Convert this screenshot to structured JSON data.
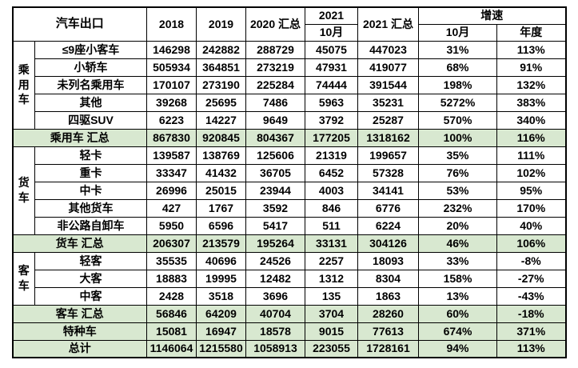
{
  "colors": {
    "summary_row_bg": "#d8e8d0",
    "border": "#000000",
    "text": "#000000",
    "background": "#ffffff"
  },
  "chart_data": {
    "type": "table",
    "title": "汽车出口",
    "header": {
      "title": "汽车出口",
      "y2018": "2018",
      "y2019": "2019",
      "y2020_total": "2020 汇总",
      "y2021": "2021",
      "y2021_month": "10月",
      "y2021_total": "2021 汇总",
      "growth": "增速",
      "growth_month": "10月",
      "growth_year": "年度"
    },
    "columns": [
      "2018",
      "2019",
      "2020 汇总",
      "2021 10月",
      "2021 汇总",
      "增速 10月",
      "增速 年度"
    ],
    "rows": [
      {
        "group": "乘用车",
        "group_rowspan": 5,
        "label": "≤9座小客车",
        "summary": false,
        "values": [
          "146298",
          "242882",
          "288729",
          "45075",
          "447023",
          "31%",
          "113%"
        ]
      },
      {
        "label": "小轿车",
        "summary": false,
        "values": [
          "505934",
          "364851",
          "273219",
          "47931",
          "419077",
          "68%",
          "91%"
        ]
      },
      {
        "label": "未列名乘用车",
        "summary": false,
        "values": [
          "170107",
          "273190",
          "225284",
          "74444",
          "391544",
          "198%",
          "132%"
        ]
      },
      {
        "label": "其他",
        "summary": false,
        "values": [
          "39268",
          "25695",
          "7486",
          "5963",
          "35231",
          "5272%",
          "383%"
        ]
      },
      {
        "label": "四驱SUV",
        "summary": false,
        "values": [
          "6223",
          "14227",
          "9649",
          "3792",
          "25287",
          "570%",
          "340%"
        ]
      },
      {
        "label": "乘用车 汇总",
        "summary": true,
        "values": [
          "867830",
          "920845",
          "804367",
          "177205",
          "1318162",
          "100%",
          "116%"
        ]
      },
      {
        "group": "货车",
        "group_rowspan": 5,
        "label": "轻卡",
        "summary": false,
        "values": [
          "139587",
          "138769",
          "125606",
          "21319",
          "199657",
          "35%",
          "111%"
        ]
      },
      {
        "label": "重卡",
        "summary": false,
        "values": [
          "33347",
          "41432",
          "36705",
          "6452",
          "57328",
          "76%",
          "102%"
        ]
      },
      {
        "label": "中卡",
        "summary": false,
        "values": [
          "26996",
          "25015",
          "23944",
          "4003",
          "34141",
          "53%",
          "95%"
        ]
      },
      {
        "label": "其他货车",
        "summary": false,
        "values": [
          "427",
          "1767",
          "3592",
          "846",
          "6776",
          "232%",
          "170%"
        ]
      },
      {
        "label": "非公路自卸车",
        "summary": false,
        "values": [
          "5950",
          "6596",
          "5417",
          "511",
          "6224",
          "20%",
          "40%"
        ]
      },
      {
        "label": "货车 汇总",
        "summary": true,
        "values": [
          "206307",
          "213579",
          "195264",
          "33131",
          "304126",
          "46%",
          "106%"
        ]
      },
      {
        "group": "客车",
        "group_rowspan": 3,
        "label": "轻客",
        "summary": false,
        "values": [
          "35535",
          "40696",
          "24526",
          "2257",
          "18093",
          "33%",
          "-8%"
        ]
      },
      {
        "label": "大客",
        "summary": false,
        "values": [
          "18883",
          "19995",
          "12482",
          "1312",
          "8304",
          "158%",
          "-27%"
        ]
      },
      {
        "label": "中客",
        "summary": false,
        "values": [
          "2428",
          "3518",
          "3696",
          "135",
          "1863",
          "13%",
          "-43%"
        ]
      },
      {
        "label": "客车 汇总",
        "summary": true,
        "values": [
          "56846",
          "64209",
          "40704",
          "3704",
          "28260",
          "60%",
          "-18%"
        ]
      },
      {
        "label": "特种车",
        "summary": true,
        "values": [
          "15081",
          "16947",
          "18578",
          "9015",
          "77613",
          "674%",
          "371%"
        ]
      },
      {
        "label": "总计",
        "summary": true,
        "values": [
          "1146064",
          "1215580",
          "1058913",
          "223055",
          "1728161",
          "94%",
          "113%"
        ]
      }
    ]
  }
}
